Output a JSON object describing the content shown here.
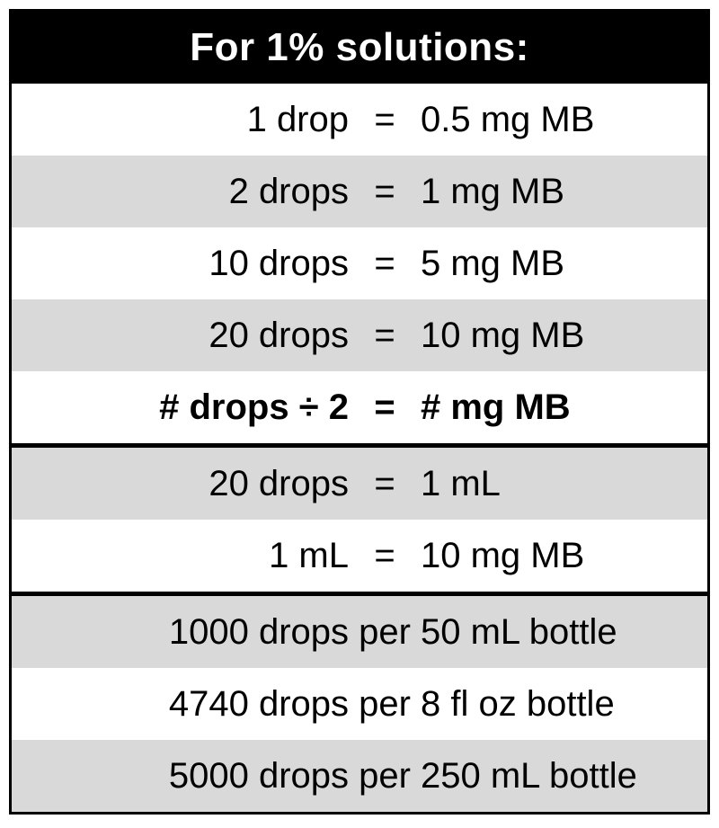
{
  "header": {
    "title": "For 1% solutions:"
  },
  "colors": {
    "header-bg": "#000000",
    "header-text": "#ffffff",
    "row-gray": "#d9d9d9",
    "row-white": "#ffffff",
    "row-text": "#000000",
    "border-black": "#000000"
  },
  "conversion_rows": [
    {
      "left": "1 drop",
      "op": "=",
      "right": "0.5 mg MB",
      "shade": "white",
      "bold": false,
      "section_end": false
    },
    {
      "left": "2 drops",
      "op": "=",
      "right": "1 mg MB",
      "shade": "gray",
      "bold": false,
      "section_end": false
    },
    {
      "left": "10 drops",
      "op": "=",
      "right": "5 mg MB",
      "shade": "white",
      "bold": false,
      "section_end": false
    },
    {
      "left": "20 drops",
      "op": "=",
      "right": "10 mg MB",
      "shade": "gray",
      "bold": false,
      "section_end": false
    },
    {
      "left": "# drops ÷ 2",
      "op": "=",
      "right": "# mg MB",
      "shade": "white",
      "bold": true,
      "section_end": true
    },
    {
      "left": "20 drops",
      "op": "=",
      "right": "1 mL",
      "shade": "gray",
      "bold": false,
      "section_end": false
    },
    {
      "left": "1 mL",
      "op": "=",
      "right": "10 mg MB",
      "shade": "white",
      "bold": false,
      "section_end": true
    },
    {
      "left": "1000 drops",
      "op": "per",
      "right": "50 mL bottle",
      "shade": "gray",
      "bold": false,
      "section_end": false
    },
    {
      "left": "4740 drops",
      "op": "per",
      "right": "8 fl oz bottle",
      "shade": "white",
      "bold": false,
      "section_end": false
    },
    {
      "left": "5000 drops",
      "op": "per",
      "right": "250 mL bottle",
      "shade": "gray",
      "bold": false,
      "section_end": false
    }
  ]
}
